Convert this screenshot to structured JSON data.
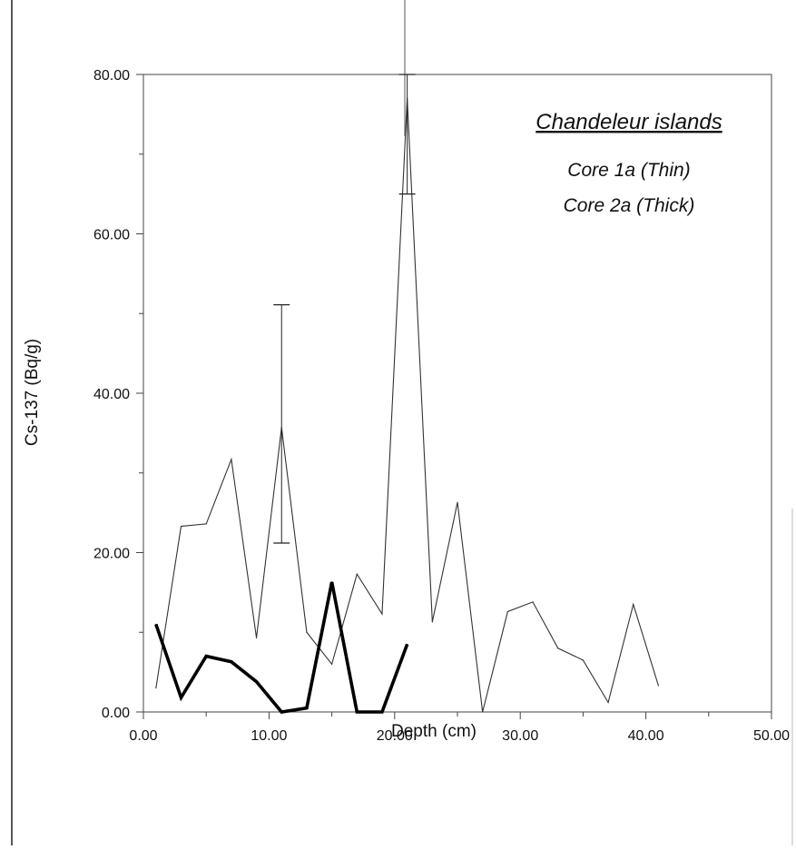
{
  "chart_data": {
    "type": "line",
    "title": "Chandeleur islands",
    "xlabel": "Depth (cm)",
    "ylabel": "Cs-137 (Bq/g)",
    "xlim": [
      0,
      50
    ],
    "ylim": [
      0,
      80
    ],
    "xticks": [
      "0.00",
      "10.00",
      "20.00",
      "30.00",
      "40.00",
      "50.00"
    ],
    "yticks": [
      "0.00",
      "20.00",
      "40.00",
      "60.00",
      "80.00"
    ],
    "grid": false,
    "legend_position": "top-right",
    "series": [
      {
        "name": "Core 1a (Thin)",
        "style": "thin",
        "color": "#333333",
        "x": [
          1,
          3,
          5,
          7,
          9,
          11,
          13,
          15,
          17,
          19,
          21,
          23,
          25,
          27,
          29,
          31,
          33,
          35,
          37,
          39,
          41
        ],
        "y": [
          3.0,
          23.3,
          23.6,
          31.7,
          9.3,
          35.7,
          10.0,
          6.0,
          17.3,
          12.3,
          77.0,
          11.3,
          26.3,
          0.0,
          12.6,
          13.8,
          8.0,
          6.5,
          1.2,
          13.5,
          3.3
        ],
        "error_bars": [
          {
            "x": 11,
            "low": 21.2,
            "high": 51.1
          },
          {
            "x": 21,
            "low": 65.0,
            "high": 80.0
          }
        ]
      },
      {
        "name": "Core 2a (Thick)",
        "style": "thick",
        "color": "#000000",
        "x": [
          1,
          3,
          5,
          7,
          9,
          11,
          13,
          15,
          17,
          19,
          21
        ],
        "y": [
          11.0,
          1.8,
          7.0,
          6.3,
          3.8,
          0.0,
          0.5,
          16.3,
          0.0,
          0.0,
          8.5
        ]
      }
    ]
  }
}
